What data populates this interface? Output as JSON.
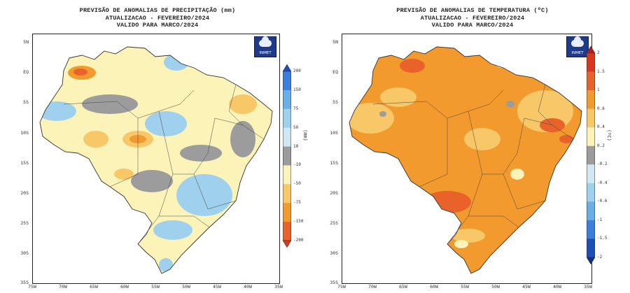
{
  "maps": [
    {
      "title_lines": [
        "PREVISÃO DE ANOMALIAS DE PRECIPITAÇÃO (mm)",
        "ATUALIZACAO - FEVEREIRO/2024",
        "VALIDO PARA MARCO/2024"
      ],
      "logo_text": "INMET",
      "y_ticks": [
        "5N",
        "EQ",
        "5S",
        "10S",
        "15S",
        "20S",
        "25S",
        "30S",
        "35S"
      ],
      "x_ticks": [
        "75W",
        "70W",
        "65W",
        "60W",
        "55W",
        "50W",
        "45W",
        "40W",
        "35W"
      ],
      "colorbar": {
        "unit": "(mm)",
        "labels": [
          "200",
          "150",
          "75",
          "50",
          "10",
          "-10",
          "-50",
          "-75",
          "-150",
          "-200"
        ],
        "colors": [
          "#1d4fb8",
          "#3b7ee0",
          "#6aaee6",
          "#9fd0ee",
          "#cfe8f4",
          "#9c9c9c",
          "#fbf3b8",
          "#f7c768",
          "#f29a2e",
          "#e8622a",
          "#d9361f"
        ]
      }
    },
    {
      "title_lines": [
        "PREVISÃO DE ANOMALIAS DE TEMPERATURA (ºC)",
        "ATUALIZACAO - FEVEREIRO/2024",
        "VALIDO PARA MARCO/2024"
      ],
      "logo_text": "INMET",
      "y_ticks": [
        "5N",
        "EQ",
        "5S",
        "10S",
        "15S",
        "20S",
        "25S",
        "30S",
        "35S"
      ],
      "x_ticks": [
        "75W",
        "70W",
        "65W",
        "60W",
        "55W",
        "50W",
        "45W",
        "40W",
        "35W"
      ],
      "colorbar": {
        "unit": "(ºC)",
        "labels": [
          "2",
          "1.5",
          "1",
          "0.6",
          "0.4",
          "0.2",
          "-0.2",
          "-0.4",
          "-0.6",
          "-1",
          "-1.5",
          "-2"
        ],
        "colors": [
          "#b0201a",
          "#d9361f",
          "#e8622a",
          "#f29a2e",
          "#f7c768",
          "#fbf3b8",
          "#9c9c9c",
          "#cfe8f4",
          "#9fd0ee",
          "#6aaee6",
          "#3b7ee0",
          "#1d4fb8",
          "#0b2f8a"
        ]
      }
    }
  ]
}
